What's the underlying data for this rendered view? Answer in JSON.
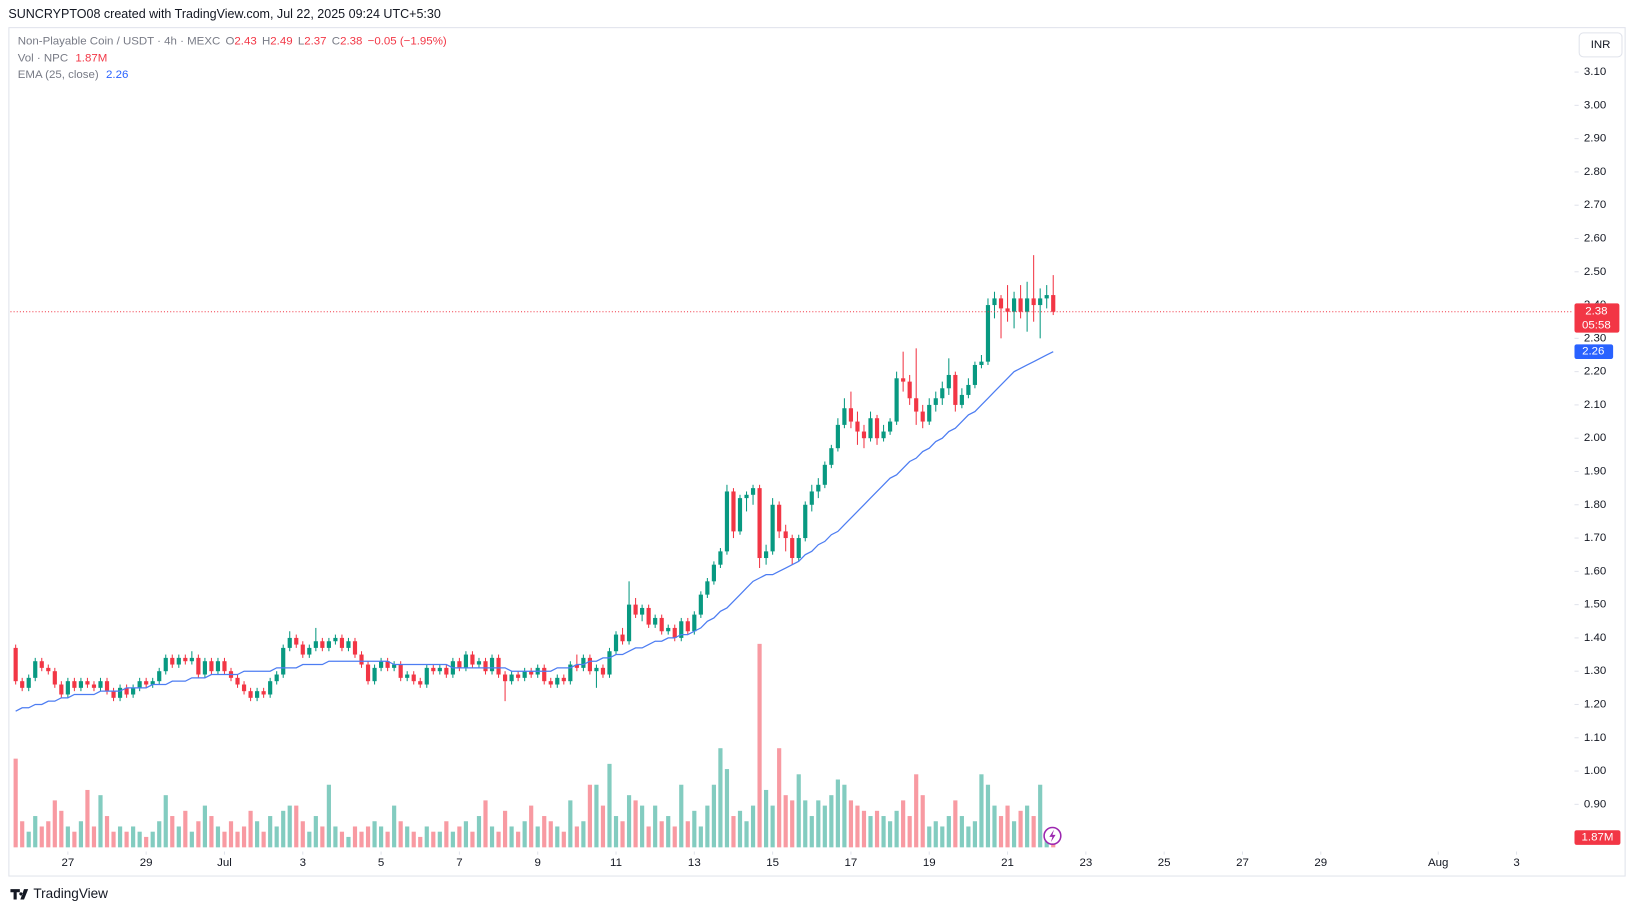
{
  "header": {
    "attribution": "SUNCRYPTO08 created with TradingView.com, Jul 22, 2025 09:24 UTC+5:30"
  },
  "footer": {
    "brand": "TradingView"
  },
  "currency_button": "INR",
  "legend": {
    "symbol": "Non-Playable Coin / USDT · 4h · MEXC",
    "ohlc_letters": [
      "O",
      "H",
      "L",
      "C"
    ],
    "change": "−0.05 (−1.95%)",
    "volume_name": "Vol · NPC",
    "ema_name": "EMA (25, close)"
  },
  "countdown": "05:58",
  "chart_data": {
    "type": "candlestick",
    "up_color": "#089981",
    "down_color": "#f23645",
    "ema_color": "#4d7df2",
    "volume_up_color": "rgba(8,153,129,0.5)",
    "volume_down_color": "rgba(242,54,69,0.5)",
    "ylim": [
      0.683,
      3.235
    ],
    "yticks": [
      {
        "value": 0.9,
        "label": "0.90"
      },
      {
        "value": 1.0,
        "label": "1.00"
      },
      {
        "value": 1.1,
        "label": "1.10"
      },
      {
        "value": 1.2,
        "label": "1.20"
      },
      {
        "value": 1.3,
        "label": "1.30"
      },
      {
        "value": 1.4,
        "label": "1.40"
      },
      {
        "value": 1.5,
        "label": "1.50"
      },
      {
        "value": 1.6,
        "label": "1.60"
      },
      {
        "value": 1.7,
        "label": "1.70"
      },
      {
        "value": 1.8,
        "label": "1.80"
      },
      {
        "value": 1.9,
        "label": "1.90"
      },
      {
        "value": 2.0,
        "label": "2.00"
      },
      {
        "value": 2.1,
        "label": "2.10"
      },
      {
        "value": 2.2,
        "label": "2.20"
      },
      {
        "value": 2.3,
        "label": "2.30"
      },
      {
        "value": 2.4,
        "label": "2.40"
      },
      {
        "value": 2.5,
        "label": "2.50"
      },
      {
        "value": 2.6,
        "label": "2.60"
      },
      {
        "value": 2.7,
        "label": "2.70"
      },
      {
        "value": 2.8,
        "label": "2.80"
      },
      {
        "value": 2.9,
        "label": "2.90"
      },
      {
        "value": 3.0,
        "label": "3.00"
      },
      {
        "value": 3.1,
        "label": "3.10"
      }
    ],
    "xlim": [
      -0.8,
      238.4
    ],
    "xticks": [
      {
        "value": 8,
        "label": "27"
      },
      {
        "value": 20,
        "label": "29"
      },
      {
        "value": 32,
        "label": "Jul"
      },
      {
        "value": 44,
        "label": "3"
      },
      {
        "value": 56,
        "label": "5"
      },
      {
        "value": 68,
        "label": "7"
      },
      {
        "value": 80,
        "label": "9"
      },
      {
        "value": 92,
        "label": "11"
      },
      {
        "value": 104,
        "label": "13"
      },
      {
        "value": 116,
        "label": "15"
      },
      {
        "value": 128,
        "label": "17"
      },
      {
        "value": 140,
        "label": "19"
      },
      {
        "value": 152,
        "label": "21"
      },
      {
        "value": 164,
        "label": "23"
      },
      {
        "value": 176,
        "label": "25"
      },
      {
        "value": 188,
        "label": "27"
      },
      {
        "value": 200,
        "label": "29"
      },
      {
        "value": 218,
        "label": "Aug"
      },
      {
        "value": 230,
        "label": "3"
      }
    ],
    "candles": [
      [
        1.37,
        1.38,
        1.26,
        1.27
      ],
      [
        1.27,
        1.28,
        1.24,
        1.25
      ],
      [
        1.25,
        1.29,
        1.24,
        1.28
      ],
      [
        1.28,
        1.34,
        1.27,
        1.33
      ],
      [
        1.33,
        1.34,
        1.3,
        1.31
      ],
      [
        1.31,
        1.32,
        1.29,
        1.3
      ],
      [
        1.3,
        1.31,
        1.25,
        1.26
      ],
      [
        1.26,
        1.27,
        1.22,
        1.23
      ],
      [
        1.23,
        1.28,
        1.22,
        1.27
      ],
      [
        1.27,
        1.28,
        1.24,
        1.25
      ],
      [
        1.25,
        1.28,
        1.24,
        1.27
      ],
      [
        1.27,
        1.28,
        1.25,
        1.26
      ],
      [
        1.26,
        1.27,
        1.24,
        1.25
      ],
      [
        1.25,
        1.28,
        1.24,
        1.27
      ],
      [
        1.27,
        1.28,
        1.23,
        1.24
      ],
      [
        1.24,
        1.25,
        1.21,
        1.22
      ],
      [
        1.22,
        1.26,
        1.21,
        1.25
      ],
      [
        1.25,
        1.26,
        1.22,
        1.23
      ],
      [
        1.23,
        1.26,
        1.22,
        1.25
      ],
      [
        1.25,
        1.28,
        1.24,
        1.27
      ],
      [
        1.27,
        1.28,
        1.25,
        1.26
      ],
      [
        1.26,
        1.28,
        1.25,
        1.27
      ],
      [
        1.27,
        1.31,
        1.26,
        1.3
      ],
      [
        1.3,
        1.35,
        1.29,
        1.34
      ],
      [
        1.34,
        1.35,
        1.31,
        1.32
      ],
      [
        1.32,
        1.35,
        1.31,
        1.34
      ],
      [
        1.34,
        1.35,
        1.32,
        1.33
      ],
      [
        1.33,
        1.36,
        1.32,
        1.34
      ],
      [
        1.34,
        1.35,
        1.28,
        1.29
      ],
      [
        1.29,
        1.34,
        1.28,
        1.33
      ],
      [
        1.33,
        1.34,
        1.29,
        1.3
      ],
      [
        1.3,
        1.34,
        1.29,
        1.33
      ],
      [
        1.33,
        1.34,
        1.29,
        1.3
      ],
      [
        1.3,
        1.31,
        1.27,
        1.28
      ],
      [
        1.28,
        1.29,
        1.25,
        1.26
      ],
      [
        1.26,
        1.27,
        1.23,
        1.24
      ],
      [
        1.24,
        1.25,
        1.21,
        1.22
      ],
      [
        1.22,
        1.25,
        1.21,
        1.24
      ],
      [
        1.24,
        1.25,
        1.22,
        1.23
      ],
      [
        1.23,
        1.28,
        1.22,
        1.27
      ],
      [
        1.27,
        1.3,
        1.26,
        1.29
      ],
      [
        1.29,
        1.38,
        1.28,
        1.37
      ],
      [
        1.37,
        1.42,
        1.36,
        1.4
      ],
      [
        1.4,
        1.41,
        1.37,
        1.38
      ],
      [
        1.38,
        1.39,
        1.34,
        1.35
      ],
      [
        1.35,
        1.38,
        1.34,
        1.37
      ],
      [
        1.37,
        1.43,
        1.36,
        1.39
      ],
      [
        1.39,
        1.4,
        1.36,
        1.37
      ],
      [
        1.37,
        1.4,
        1.36,
        1.39
      ],
      [
        1.39,
        1.41,
        1.38,
        1.4
      ],
      [
        1.4,
        1.41,
        1.36,
        1.37
      ],
      [
        1.37,
        1.4,
        1.36,
        1.39
      ],
      [
        1.39,
        1.4,
        1.34,
        1.35
      ],
      [
        1.35,
        1.36,
        1.31,
        1.32
      ],
      [
        1.32,
        1.33,
        1.26,
        1.27
      ],
      [
        1.27,
        1.32,
        1.26,
        1.31
      ],
      [
        1.31,
        1.34,
        1.3,
        1.33
      ],
      [
        1.33,
        1.34,
        1.3,
        1.31
      ],
      [
        1.31,
        1.33,
        1.3,
        1.32
      ],
      [
        1.32,
        1.33,
        1.27,
        1.28
      ],
      [
        1.28,
        1.3,
        1.27,
        1.29
      ],
      [
        1.29,
        1.3,
        1.26,
        1.27
      ],
      [
        1.27,
        1.28,
        1.25,
        1.26
      ],
      [
        1.26,
        1.32,
        1.25,
        1.31
      ],
      [
        1.31,
        1.32,
        1.29,
        1.3
      ],
      [
        1.3,
        1.32,
        1.29,
        1.31
      ],
      [
        1.31,
        1.32,
        1.28,
        1.29
      ],
      [
        1.29,
        1.34,
        1.28,
        1.33
      ],
      [
        1.33,
        1.34,
        1.3,
        1.31
      ],
      [
        1.31,
        1.36,
        1.3,
        1.35
      ],
      [
        1.35,
        1.36,
        1.31,
        1.32
      ],
      [
        1.32,
        1.34,
        1.31,
        1.33
      ],
      [
        1.33,
        1.34,
        1.29,
        1.3
      ],
      [
        1.3,
        1.35,
        1.29,
        1.34
      ],
      [
        1.34,
        1.35,
        1.28,
        1.29
      ],
      [
        1.29,
        1.3,
        1.21,
        1.27
      ],
      [
        1.27,
        1.3,
        1.26,
        1.29
      ],
      [
        1.29,
        1.3,
        1.27,
        1.28
      ],
      [
        1.28,
        1.31,
        1.27,
        1.3
      ],
      [
        1.3,
        1.31,
        1.28,
        1.29
      ],
      [
        1.29,
        1.32,
        1.28,
        1.31
      ],
      [
        1.31,
        1.32,
        1.26,
        1.27
      ],
      [
        1.27,
        1.28,
        1.25,
        1.26
      ],
      [
        1.26,
        1.29,
        1.25,
        1.28
      ],
      [
        1.28,
        1.29,
        1.26,
        1.27
      ],
      [
        1.27,
        1.33,
        1.26,
        1.32
      ],
      [
        1.32,
        1.35,
        1.3,
        1.31
      ],
      [
        1.31,
        1.35,
        1.3,
        1.34
      ],
      [
        1.34,
        1.35,
        1.29,
        1.3
      ],
      [
        1.3,
        1.32,
        1.25,
        1.31
      ],
      [
        1.31,
        1.32,
        1.28,
        1.29
      ],
      [
        1.29,
        1.37,
        1.28,
        1.36
      ],
      [
        1.36,
        1.42,
        1.35,
        1.41
      ],
      [
        1.41,
        1.43,
        1.38,
        1.39
      ],
      [
        1.39,
        1.57,
        1.38,
        1.5
      ],
      [
        1.5,
        1.52,
        1.46,
        1.47
      ],
      [
        1.47,
        1.5,
        1.45,
        1.49
      ],
      [
        1.49,
        1.5,
        1.43,
        1.44
      ],
      [
        1.44,
        1.47,
        1.43,
        1.46
      ],
      [
        1.46,
        1.47,
        1.41,
        1.42
      ],
      [
        1.42,
        1.44,
        1.41,
        1.43
      ],
      [
        1.43,
        1.44,
        1.39,
        1.4
      ],
      [
        1.4,
        1.46,
        1.39,
        1.45
      ],
      [
        1.45,
        1.46,
        1.41,
        1.42
      ],
      [
        1.42,
        1.48,
        1.41,
        1.47
      ],
      [
        1.47,
        1.54,
        1.46,
        1.53
      ],
      [
        1.53,
        1.58,
        1.52,
        1.57
      ],
      [
        1.57,
        1.63,
        1.56,
        1.62
      ],
      [
        1.62,
        1.67,
        1.61,
        1.66
      ],
      [
        1.66,
        1.86,
        1.65,
        1.84
      ],
      [
        1.84,
        1.85,
        1.7,
        1.72
      ],
      [
        1.72,
        1.83,
        1.71,
        1.82
      ],
      [
        1.82,
        1.84,
        1.78,
        1.83
      ],
      [
        1.83,
        1.86,
        1.8,
        1.85
      ],
      [
        1.85,
        1.86,
        1.61,
        1.64
      ],
      [
        1.64,
        1.68,
        1.62,
        1.66
      ],
      [
        1.66,
        1.82,
        1.65,
        1.8
      ],
      [
        1.8,
        1.81,
        1.7,
        1.72
      ],
      [
        1.72,
        1.74,
        1.66,
        1.7
      ],
      [
        1.7,
        1.71,
        1.62,
        1.64
      ],
      [
        1.64,
        1.71,
        1.63,
        1.7
      ],
      [
        1.7,
        1.81,
        1.69,
        1.8
      ],
      [
        1.8,
        1.86,
        1.78,
        1.84
      ],
      [
        1.84,
        1.88,
        1.82,
        1.86
      ],
      [
        1.86,
        1.93,
        1.85,
        1.92
      ],
      [
        1.92,
        1.98,
        1.91,
        1.97
      ],
      [
        1.97,
        2.06,
        1.96,
        2.04
      ],
      [
        2.04,
        2.12,
        2.03,
        2.09
      ],
      [
        2.09,
        2.14,
        2.03,
        2.05
      ],
      [
        2.05,
        2.08,
        1.98,
        2.02
      ],
      [
        2.02,
        2.04,
        1.97,
        2.0
      ],
      [
        2.0,
        2.08,
        1.99,
        2.06
      ],
      [
        2.06,
        2.07,
        1.98,
        2.0
      ],
      [
        2.0,
        2.04,
        1.99,
        2.02
      ],
      [
        2.02,
        2.06,
        2.01,
        2.05
      ],
      [
        2.05,
        2.2,
        2.04,
        2.18
      ],
      [
        2.18,
        2.26,
        2.14,
        2.17
      ],
      [
        2.17,
        2.19,
        2.1,
        2.12
      ],
      [
        2.12,
        2.27,
        2.04,
        2.08
      ],
      [
        2.08,
        2.1,
        2.03,
        2.05
      ],
      [
        2.05,
        2.12,
        2.04,
        2.1
      ],
      [
        2.1,
        2.14,
        2.08,
        2.12
      ],
      [
        2.12,
        2.17,
        2.1,
        2.15
      ],
      [
        2.15,
        2.24,
        2.13,
        2.19
      ],
      [
        2.19,
        2.2,
        2.08,
        2.1
      ],
      [
        2.1,
        2.15,
        2.09,
        2.13
      ],
      [
        2.13,
        2.18,
        2.12,
        2.16
      ],
      [
        2.16,
        2.23,
        2.15,
        2.22
      ],
      [
        2.22,
        2.25,
        2.21,
        2.23
      ],
      [
        2.23,
        2.42,
        2.22,
        2.4
      ],
      [
        2.4,
        2.44,
        2.36,
        2.42
      ],
      [
        2.42,
        2.43,
        2.3,
        2.39
      ],
      [
        2.39,
        2.46,
        2.35,
        2.38
      ],
      [
        2.38,
        2.44,
        2.33,
        2.42
      ],
      [
        2.42,
        2.46,
        2.36,
        2.38
      ],
      [
        2.38,
        2.47,
        2.32,
        2.42
      ],
      [
        2.42,
        2.55,
        2.35,
        2.4
      ],
      [
        2.4,
        2.45,
        2.3,
        2.42
      ],
      [
        2.42,
        2.46,
        2.39,
        2.43
      ],
      [
        2.43,
        2.49,
        2.37,
        2.38
      ]
    ],
    "ema": [
      1.18,
      1.19,
      1.19,
      1.2,
      1.2,
      1.21,
      1.21,
      1.22,
      1.22,
      1.23,
      1.23,
      1.23,
      1.23,
      1.24,
      1.24,
      1.24,
      1.24,
      1.25,
      1.25,
      1.25,
      1.25,
      1.26,
      1.26,
      1.26,
      1.27,
      1.27,
      1.27,
      1.28,
      1.28,
      1.28,
      1.29,
      1.29,
      1.29,
      1.29,
      1.29,
      1.3,
      1.3,
      1.3,
      1.3,
      1.3,
      1.31,
      1.31,
      1.31,
      1.31,
      1.32,
      1.32,
      1.32,
      1.32,
      1.33,
      1.33,
      1.33,
      1.33,
      1.33,
      1.33,
      1.33,
      1.33,
      1.33,
      1.33,
      1.32,
      1.32,
      1.32,
      1.32,
      1.32,
      1.32,
      1.32,
      1.32,
      1.32,
      1.31,
      1.31,
      1.31,
      1.31,
      1.31,
      1.31,
      1.31,
      1.31,
      1.31,
      1.3,
      1.3,
      1.3,
      1.3,
      1.3,
      1.3,
      1.3,
      1.31,
      1.31,
      1.31,
      1.32,
      1.32,
      1.33,
      1.33,
      1.34,
      1.34,
      1.35,
      1.35,
      1.36,
      1.37,
      1.37,
      1.38,
      1.39,
      1.39,
      1.4,
      1.4,
      1.41,
      1.41,
      1.42,
      1.43,
      1.45,
      1.46,
      1.48,
      1.49,
      1.51,
      1.53,
      1.55,
      1.57,
      1.58,
      1.59,
      1.59,
      1.6,
      1.61,
      1.62,
      1.63,
      1.65,
      1.66,
      1.68,
      1.69,
      1.71,
      1.72,
      1.74,
      1.76,
      1.78,
      1.8,
      1.82,
      1.84,
      1.86,
      1.88,
      1.89,
      1.91,
      1.93,
      1.94,
      1.96,
      1.97,
      1.99,
      2.0,
      2.02,
      2.03,
      2.05,
      2.07,
      2.08,
      2.1,
      2.12,
      2.14,
      2.16,
      2.18,
      2.2,
      2.21,
      2.22,
      2.23,
      2.24,
      2.25,
      2.26
    ],
    "volume_lim": [
      0,
      44
    ],
    "volume": [
      17,
      5,
      3,
      6,
      4,
      5,
      9,
      7,
      4,
      3,
      5,
      11,
      4,
      10,
      6,
      3,
      4,
      3,
      4,
      3,
      2,
      3,
      5,
      10,
      6,
      4,
      7,
      3,
      5,
      8,
      6,
      4,
      3,
      5,
      3,
      4,
      7,
      5,
      3,
      6,
      4,
      7,
      8,
      8,
      5,
      3,
      6,
      4,
      12,
      4,
      3,
      2,
      4,
      3,
      4,
      5,
      4,
      3,
      8,
      5,
      4,
      3,
      2,
      4,
      3,
      3,
      5,
      3,
      4,
      5,
      3,
      6,
      9,
      4,
      3,
      7,
      4,
      3,
      5,
      8,
      4,
      6,
      5,
      4,
      3,
      9,
      4,
      5,
      12,
      12,
      8,
      16,
      6,
      5,
      10,
      9,
      8,
      4,
      8,
      5,
      6,
      4,
      12,
      5,
      7,
      4,
      8,
      12,
      19,
      15,
      6,
      7,
      5,
      8,
      39,
      11,
      8,
      19,
      10,
      9,
      14,
      9,
      6,
      9,
      8,
      10,
      13,
      12,
      9,
      8,
      7,
      6,
      7,
      6,
      5,
      7,
      9,
      6,
      14,
      10,
      4,
      5,
      4,
      6,
      9,
      6,
      4,
      5,
      14,
      12,
      8,
      6,
      8,
      5,
      7,
      8,
      6,
      12,
      3,
      1.87
    ],
    "last_volume_label": "1.87M"
  }
}
